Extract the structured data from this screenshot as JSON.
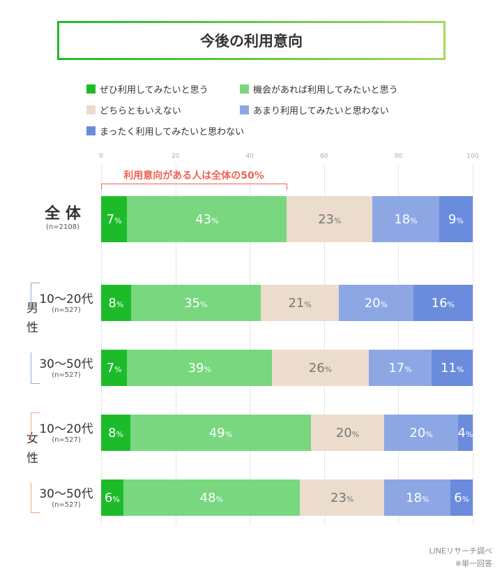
{
  "title": "今後の利用意向",
  "chart_data": {
    "type": "bar",
    "orientation": "horizontal",
    "stacked": true,
    "xlim": [
      0,
      100
    ],
    "ticks": [
      "0",
      "20",
      "40",
      "60",
      "80",
      "100"
    ],
    "grid": true,
    "legend": [
      "ぜひ利用してみたいと思う",
      "機会があれば利用してみたいと思う",
      "どちらともいえない",
      "あまり利用してみたいと思わない",
      "まったく利用してみたいと思わない"
    ],
    "colors": [
      "#1dbb2a",
      "#78d77f",
      "#ebdccd",
      "#8ca7e4",
      "#6b8cdd"
    ],
    "text_colors": [
      "#fff",
      "#fff",
      "#777",
      "#fff",
      "#fff"
    ],
    "rows": [
      {
        "label": "全 体",
        "n": "(n=2108)",
        "values": [
          7,
          43,
          23,
          18,
          9
        ]
      },
      {
        "group": "男性",
        "label": "10〜20代",
        "n": "(n=527)",
        "values": [
          8,
          35,
          21,
          20,
          16
        ]
      },
      {
        "group": "男性",
        "label": "30〜50代",
        "n": "(n=527)",
        "values": [
          7,
          39,
          26,
          17,
          11
        ]
      },
      {
        "group": "女性",
        "label": "10〜20代",
        "n": "(n=527)",
        "values": [
          8,
          49,
          20,
          20,
          4
        ]
      },
      {
        "group": "女性",
        "label": "30〜50代",
        "n": "(n=527)",
        "values": [
          6,
          48,
          23,
          18,
          6
        ]
      }
    ],
    "unit": "%",
    "annotation": "利用意向がある人は全体の50%",
    "groups": [
      {
        "label": "男性",
        "color": "#8ca7e4"
      },
      {
        "label": "女性",
        "color": "#f5a27a"
      }
    ]
  },
  "notes": [
    "LINEリサーチ調べ",
    "※単一回答"
  ]
}
